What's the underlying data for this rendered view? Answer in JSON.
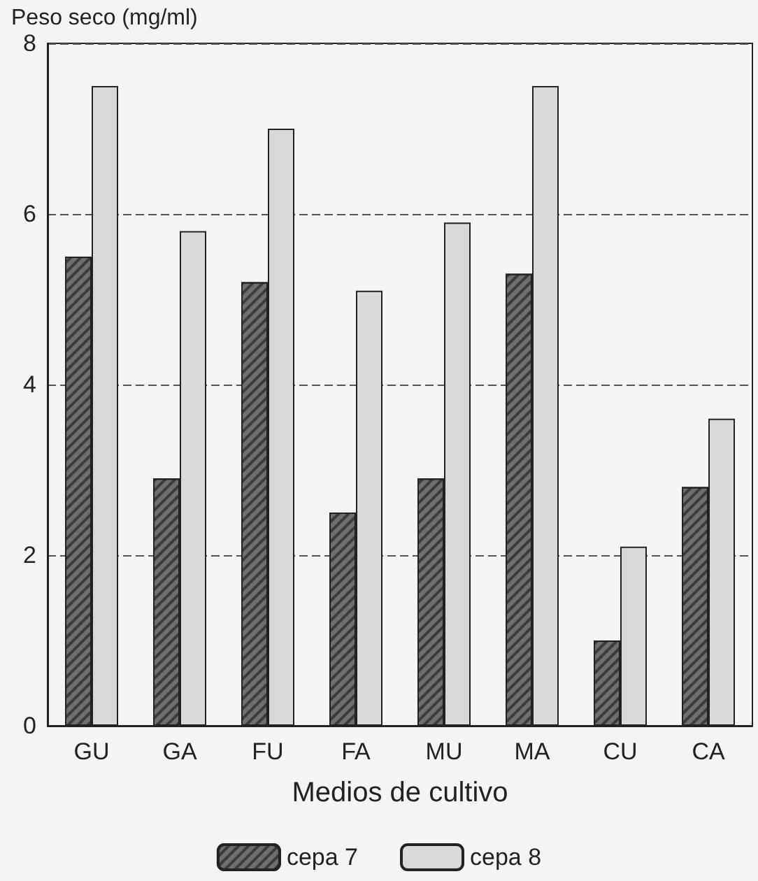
{
  "chart_data": {
    "type": "bar",
    "ylabel": "Peso seco (mg/ml)",
    "xlabel": "Medios de cultivo",
    "categories": [
      "GU",
      "GA",
      "FU",
      "FA",
      "MU",
      "MA",
      "CU",
      "CA"
    ],
    "series": [
      {
        "name": "cepa 7",
        "color": "#6e6e6e",
        "values": [
          5.5,
          2.9,
          5.2,
          2.5,
          2.9,
          5.3,
          1.0,
          2.8
        ]
      },
      {
        "name": "cepa 8",
        "color": "#d9d9d9",
        "values": [
          7.5,
          5.8,
          7.0,
          5.1,
          5.9,
          7.5,
          2.1,
          3.6
        ]
      }
    ],
    "ylim": [
      0,
      8
    ],
    "yticks": [
      0,
      2,
      4,
      6,
      8
    ],
    "grid": "y",
    "legend": "bottom"
  }
}
